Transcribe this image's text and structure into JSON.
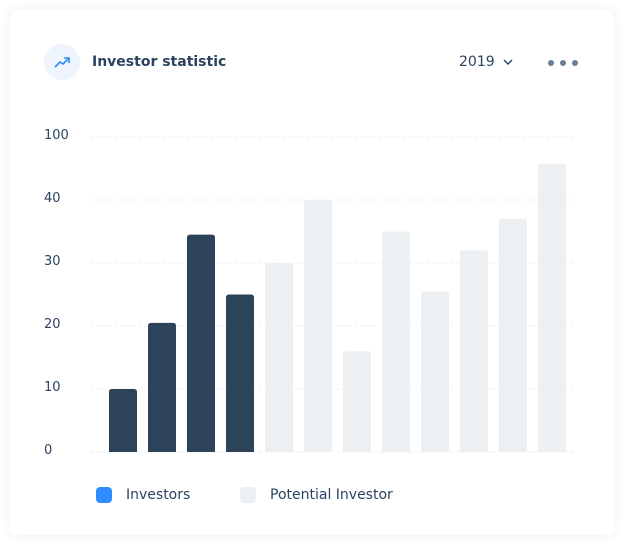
{
  "header": {
    "title": "Investor statistic",
    "year": "2019",
    "icon": "trending-up-icon",
    "menu_icon": "more-horizontal-icon"
  },
  "chart_data": {
    "type": "bar",
    "y_ticks": [
      "0",
      "10",
      "20",
      "30",
      "40",
      "100"
    ],
    "grid": true,
    "legend_placement": "bottom-left",
    "series": [
      {
        "name": "Investors",
        "color": "#2c4359",
        "legend_color": "#2e8cff",
        "values": [
          10,
          20.5,
          34.5,
          25,
          null,
          null,
          null,
          null,
          null,
          null,
          null,
          null
        ]
      },
      {
        "name": "Potential Investor",
        "color": "#edf0f3",
        "legend_color": "#edf0f3",
        "values": [
          null,
          null,
          null,
          null,
          30,
          40,
          16,
          35,
          25.5,
          32,
          37,
          74
        ]
      }
    ]
  }
}
